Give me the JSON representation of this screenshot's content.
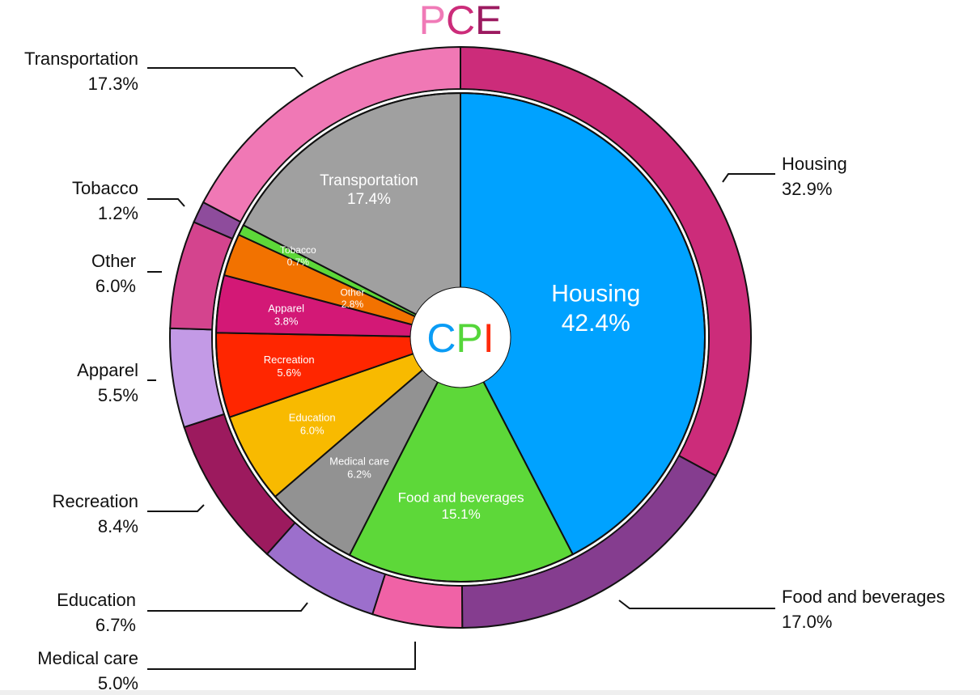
{
  "chart_data": {
    "type": "pie",
    "outer": {
      "title_letters": [
        {
          "text": "P",
          "color": "#f07ab7"
        },
        {
          "text": "C",
          "color": "#cc2c7a"
        },
        {
          "text": "E",
          "color": "#9c1a60"
        }
      ],
      "series": [
        {
          "name": "Housing",
          "value": 32.9,
          "label": "32.9%",
          "color": "#cc2c7a"
        },
        {
          "name": "Food and beverages",
          "value": 17.0,
          "label": "17.0%",
          "color": "#853d8f"
        },
        {
          "name": "Medical care",
          "value": 5.0,
          "label": "5.0%",
          "color": "#f062a6"
        },
        {
          "name": "Education",
          "value": 6.7,
          "label": "6.7%",
          "color": "#9c6fcc"
        },
        {
          "name": "Recreation",
          "value": 8.4,
          "label": "8.4%",
          "color": "#9c1a5e"
        },
        {
          "name": "Apparel",
          "value": 5.5,
          "label": "5.5%",
          "color": "#c39ae6"
        },
        {
          "name": "Other",
          "value": 6.0,
          "label": "6.0%",
          "color": "#d4448e"
        },
        {
          "name": "Tobacco",
          "value": 1.2,
          "label": "1.2%",
          "color": "#8e4c9c"
        },
        {
          "name": "Transportation",
          "value": 17.3,
          "label": "17.3%",
          "color": "#f078b5"
        }
      ]
    },
    "inner": {
      "center_letters": [
        {
          "text": "C",
          "color": "#0a9cf5"
        },
        {
          "text": "P",
          "color": "#55d63a"
        },
        {
          "text": "I",
          "color": "#ff2a0a"
        }
      ],
      "series": [
        {
          "name": "Housing",
          "value": 42.4,
          "label": "42.4%",
          "color": "#00a2ff"
        },
        {
          "name": "Food and beverages",
          "value": 15.1,
          "label": "15.1%",
          "color": "#5dd839"
        },
        {
          "name": "Medical care",
          "value": 6.2,
          "label": "6.2%",
          "color": "#929292"
        },
        {
          "name": "Education",
          "value": 6.0,
          "label": "6.0%",
          "color": "#f8ba00"
        },
        {
          "name": "Recreation",
          "value": 5.6,
          "label": "5.6%",
          "color": "#ff2600"
        },
        {
          "name": "Apparel",
          "value": 3.8,
          "label": "3.8%",
          "color": "#d31876"
        },
        {
          "name": "Other",
          "value": 2.8,
          "label": "2.8%",
          "color": "#f27200"
        },
        {
          "name": "Tobacco",
          "value": 0.7,
          "label": "0.7%",
          "color": "#5dd839"
        },
        {
          "name": "Transportation",
          "value": 17.4,
          "label": "17.4%",
          "color": "#a0a0a0"
        }
      ]
    }
  }
}
